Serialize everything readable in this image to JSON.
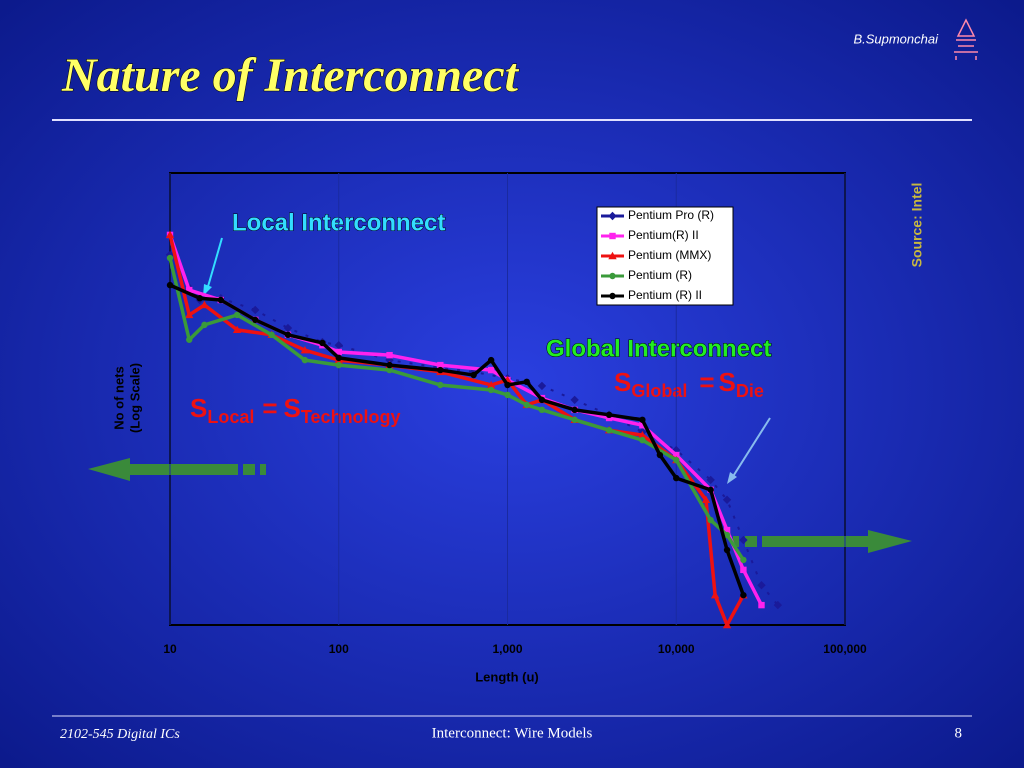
{
  "header": {
    "author": "B.Supmonchai",
    "title": "Nature of Interconnect"
  },
  "footer": {
    "course": "2102-545 Digital ICs",
    "topic": "Interconnect: Wire Models",
    "page": "8"
  },
  "chart_data": {
    "type": "line",
    "source": "Source: Intel",
    "xlabel": "Length (u)",
    "ylabel": [
      "No of nets",
      "(Log Scale)"
    ],
    "xscale": "log",
    "xlim": [
      10,
      100000
    ],
    "xticks": [
      10,
      100,
      {
        "value": 1000,
        "label": "1,000"
      },
      {
        "value": 10000,
        "label": "10,000"
      },
      {
        "value": 100000,
        "label": "100,000"
      }
    ],
    "ylim": [
      0,
      100
    ],
    "grid": true,
    "legend": "top-right",
    "annotations": {
      "local": "Local Interconnect",
      "global": "Global Interconnect",
      "local_eq": [
        "S",
        "Local",
        "=",
        "S",
        "Technology"
      ],
      "global_eq": [
        "S",
        "Global",
        "=",
        "S",
        "Die"
      ]
    },
    "series": [
      {
        "name": "Pentium Pro (R)",
        "color": "#1a1a9a",
        "marker": "diamond",
        "dashed": true,
        "x": [
          10,
          15,
          20,
          32,
          50,
          80,
          100,
          200,
          400,
          630,
          1000,
          1600,
          2500,
          4000,
          6300,
          10000,
          16000,
          20000,
          25000,
          32000,
          40000
        ],
        "values": [
          81.9,
          71.9,
          72.3,
          69.7,
          65.7,
          62.6,
          61.9,
          58.6,
          56.9,
          56.0,
          54.6,
          52.9,
          49.8,
          46.5,
          42.7,
          38.7,
          32.1,
          27.7,
          18.8,
          8.8,
          4.4
        ]
      },
      {
        "name": "Pentium(R) II",
        "color": "#ff22ee",
        "marker": "square",
        "x": [
          10,
          13,
          20,
          32,
          50,
          80,
          100,
          200,
          400,
          800,
          1000,
          1600,
          2500,
          4000,
          6300,
          10000,
          16000,
          20000,
          25000,
          32000
        ],
        "values": [
          86.3,
          74.1,
          71.9,
          67.5,
          64.2,
          61.9,
          60.4,
          59.7,
          57.5,
          56.4,
          54.2,
          50.2,
          47.6,
          45.8,
          44.2,
          37.6,
          29.9,
          21.0,
          12.2,
          4.4
        ]
      },
      {
        "name": "Pentium (MMX)",
        "color": "#ee1111",
        "marker": "triangle",
        "x": [
          10,
          13,
          16,
          25,
          40,
          63,
          100,
          200,
          400,
          800,
          1000,
          1300,
          1600,
          2500,
          4000,
          6300,
          10000,
          15000,
          17000,
          20000,
          25000
        ],
        "values": [
          86.3,
          68.6,
          70.8,
          65.3,
          64.2,
          60.8,
          58.6,
          57.5,
          56.0,
          53.1,
          54.2,
          48.7,
          49.8,
          45.4,
          43.1,
          42.0,
          36.5,
          27.7,
          6.6,
          0,
          6.6
        ]
      },
      {
        "name": "Pentium (R)",
        "color": "#3a9a3a",
        "marker": "circle",
        "x": [
          10,
          13,
          16,
          25,
          40,
          63,
          100,
          200,
          400,
          800,
          1000,
          1300,
          1600,
          2500,
          4000,
          6300,
          10000,
          16000,
          20000,
          25000
        ],
        "values": [
          81.2,
          63.1,
          66.4,
          68.6,
          64.2,
          58.6,
          57.5,
          56.4,
          53.1,
          52.0,
          50.9,
          48.7,
          47.6,
          45.4,
          43.1,
          40.9,
          36.5,
          23.2,
          19.9,
          14.4
        ]
      },
      {
        "name": "Pentium (R) II",
        "color": "#000000",
        "marker": "circle",
        "x": [
          10,
          15,
          20,
          32,
          50,
          80,
          100,
          200,
          400,
          630,
          800,
          1000,
          1300,
          1600,
          2500,
          4000,
          6300,
          8000,
          10000,
          16000,
          20000,
          25000
        ],
        "values": [
          75.2,
          72.3,
          71.9,
          67.5,
          64.2,
          62.4,
          59.1,
          57.5,
          56.4,
          55.3,
          58.6,
          53.1,
          53.8,
          49.8,
          47.6,
          46.5,
          45.4,
          37.6,
          32.5,
          29.9,
          16.6,
          6.6
        ]
      }
    ]
  }
}
